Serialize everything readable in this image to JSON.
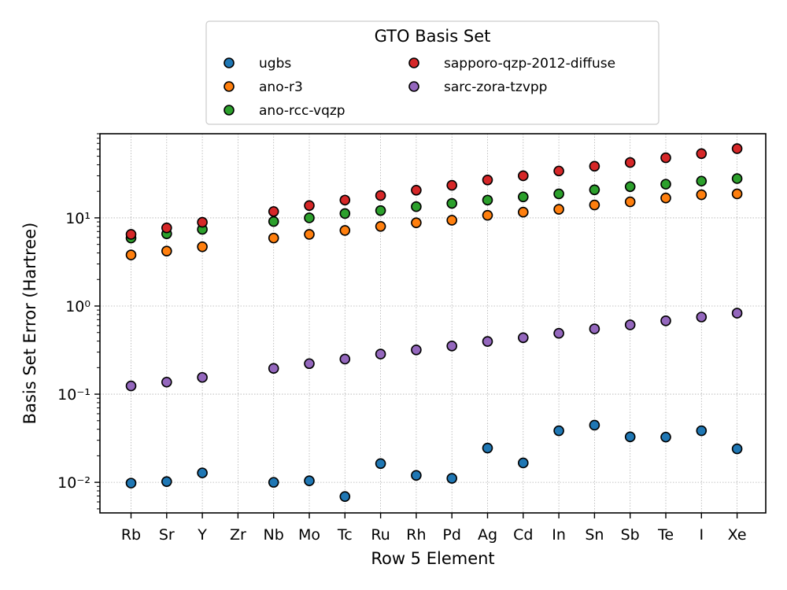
{
  "chart_data": {
    "type": "scatter",
    "xlabel": "Row 5 Element",
    "ylabel": "Basis Set Error (Hartree)",
    "categories": [
      "Rb",
      "Sr",
      "Y",
      "Zr",
      "Nb",
      "Mo",
      "Tc",
      "Ru",
      "Rh",
      "Pd",
      "Ag",
      "Cd",
      "In",
      "Sn",
      "Sb",
      "Te",
      "I",
      "Xe"
    ],
    "y_scale": "log",
    "ylim": [
      0.0045,
      90
    ],
    "y_tick_labels": [
      "10⁻²",
      "10⁻¹",
      "10⁰",
      "10¹"
    ],
    "grid": true,
    "legend": {
      "title": "GTO Basis Set",
      "position": "top-center, above plot",
      "columns": 2
    },
    "series": [
      {
        "name": "ugbs",
        "color": "#1f77b4",
        "values": [
          0.0098,
          0.0102,
          0.0128,
          null,
          0.01,
          0.0104,
          0.0069,
          0.0163,
          0.012,
          0.0111,
          0.0245,
          0.0166,
          0.0385,
          0.0445,
          0.0328,
          0.0326,
          0.0385,
          0.024
        ]
      },
      {
        "name": "ano-r3",
        "color": "#ff7f0e",
        "values": [
          3.8,
          4.2,
          4.7,
          null,
          5.9,
          6.5,
          7.2,
          8.0,
          8.8,
          9.4,
          10.7,
          11.6,
          12.5,
          14.0,
          15.2,
          16.8,
          18.3,
          18.7
        ]
      },
      {
        "name": "ano-rcc-vqzp",
        "color": "#2ca02c",
        "values": [
          5.9,
          6.6,
          7.4,
          null,
          9.1,
          10.0,
          11.2,
          12.1,
          13.4,
          14.6,
          15.9,
          17.3,
          18.7,
          20.8,
          22.6,
          24.1,
          26.1,
          27.9
        ]
      },
      {
        "name": "sapporo-qzp-2012-diffuse",
        "color": "#d62728",
        "values": [
          6.5,
          7.7,
          8.9,
          null,
          11.8,
          13.8,
          15.9,
          17.9,
          20.6,
          23.4,
          26.9,
          30.0,
          34.0,
          38.5,
          42.5,
          48.0,
          53.5,
          61.0
        ]
      },
      {
        "name": "sarc-zora-tzvpp",
        "color": "#9467bd",
        "values": [
          0.124,
          0.137,
          0.155,
          null,
          0.196,
          0.222,
          0.25,
          0.285,
          0.318,
          0.352,
          0.396,
          0.437,
          0.49,
          0.55,
          0.612,
          0.68,
          0.75,
          0.83
        ]
      }
    ]
  }
}
